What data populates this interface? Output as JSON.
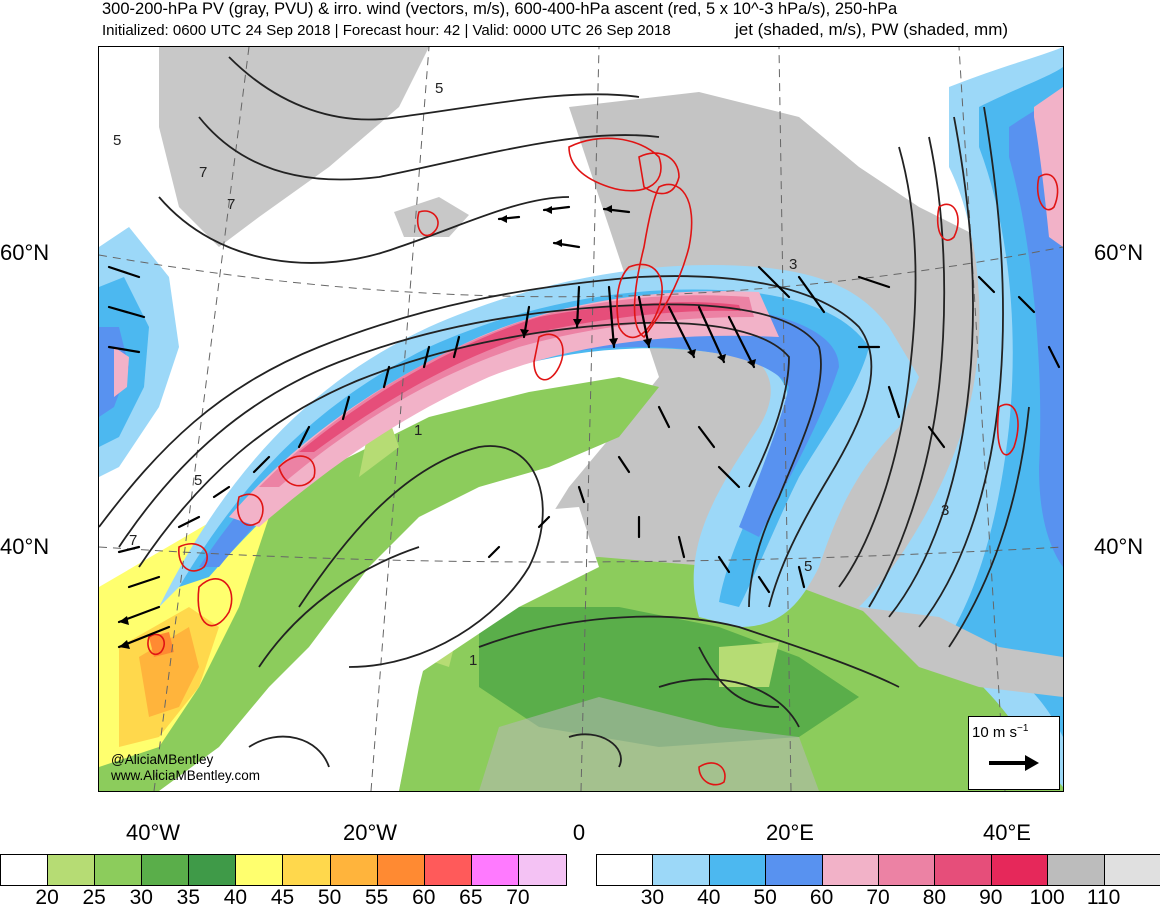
{
  "header": {
    "line1": "300-200-hPa PV (gray, PVU) & irro. wind (vectors, m/s), 600-400-hPa ascent (red, 5 x 10^-3 hPa/s), 250-hPa",
    "line2": "Initialized: 0600 UTC 24 Sep 2018 | Forecast hour: 42 | Valid: 0000 UTC 26 Sep 2018",
    "line2b": "jet (shaded, m/s), PW (shaded, mm)"
  },
  "map": {
    "lat_labels": [
      "60°N",
      "40°N"
    ],
    "lon_labels": [
      "40°W",
      "20°W",
      "0",
      "20°E",
      "40°E"
    ],
    "contour_labels": [
      "5",
      "7",
      "7",
      "5",
      "3",
      "1",
      "5",
      "7",
      "1",
      "5",
      "3"
    ],
    "credit_handle": "@AliciaMBentley",
    "credit_url": "www.AliciaMBentley.com",
    "ref_vector_label": "10 m s",
    "ref_vector_exp": "−1"
  },
  "colorbars": {
    "pw": {
      "ticks": [
        "20",
        "25",
        "30",
        "35",
        "40",
        "45",
        "50",
        "55",
        "60",
        "65",
        "70"
      ],
      "colors": [
        "#ffffff",
        "#b6dc74",
        "#8ccc5c",
        "#5aae4a",
        "#3f9a48",
        "#ffff6e",
        "#ffd84c",
        "#ffb43c",
        "#ff8a32",
        "#ff5a5a",
        "#ff7aff",
        "#f4c2f4"
      ]
    },
    "jet": {
      "ticks": [
        "30",
        "40",
        "50",
        "60",
        "70",
        "80",
        "90",
        "100",
        "110"
      ],
      "colors": [
        "#ffffff",
        "#9cd8f8",
        "#4cb8f0",
        "#5892f0",
        "#f2b2c8",
        "#ec82a4",
        "#e64e7a",
        "#e6285a",
        "#bcbcbc",
        "#e0e0e0"
      ]
    }
  }
}
